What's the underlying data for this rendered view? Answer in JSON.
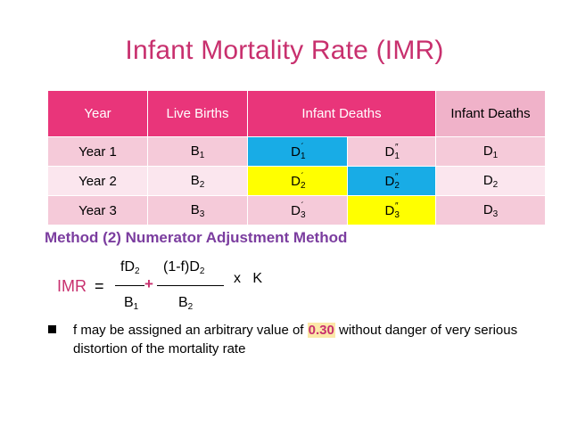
{
  "title": "Infant Mortality Rate (IMR)",
  "table": {
    "headers": [
      "Year",
      "Live Births",
      "Infant Deaths",
      "Infant Deaths"
    ],
    "rows": [
      {
        "year": "Year 1",
        "births": "B",
        "births_sub": "1",
        "d1": "D",
        "d1_sub": "1",
        "d1_sup": "´",
        "d2": "D",
        "d2_sub": "1",
        "d2_sup": "″",
        "d3": "D",
        "d3_sub": "1"
      },
      {
        "year": "Year 2",
        "births": "B",
        "births_sub": "2",
        "d1": "D",
        "d1_sub": "2",
        "d1_sup": "´",
        "d2": "D",
        "d2_sub": "2",
        "d2_sup": "″",
        "d3": "D",
        "d3_sub": "2"
      },
      {
        "year": "Year 3",
        "births": "B",
        "births_sub": "3",
        "d1": "D",
        "d1_sub": "3",
        "d1_sup": "´",
        "d2": "D",
        "d2_sub": "3",
        "d2_sup": "″",
        "d3": "D",
        "d3_sub": "3"
      }
    ]
  },
  "method_heading": "Method (2) Numerator Adjustment Method",
  "formula": {
    "label": "IMR",
    "equals": "=",
    "num1": "fD",
    "num1_sub": "2",
    "num2": "(1-f)D",
    "num2_sub": "2",
    "den1": "B",
    "den1_sub": "1",
    "den2": "B",
    "den2_sub": "2",
    "plus": "+",
    "multiplier": "x   K"
  },
  "bullet": {
    "pre": "f may be assigned an arbitrary value of ",
    "value": "0.30",
    "post": " without danger of very serious distortion of the mortality rate"
  },
  "colors": {
    "title": "#c8306e",
    "header": "#e9357a",
    "blue_cell": "#18ace6",
    "yellow_cell": "#ffff00",
    "method": "#7b3d9f"
  }
}
